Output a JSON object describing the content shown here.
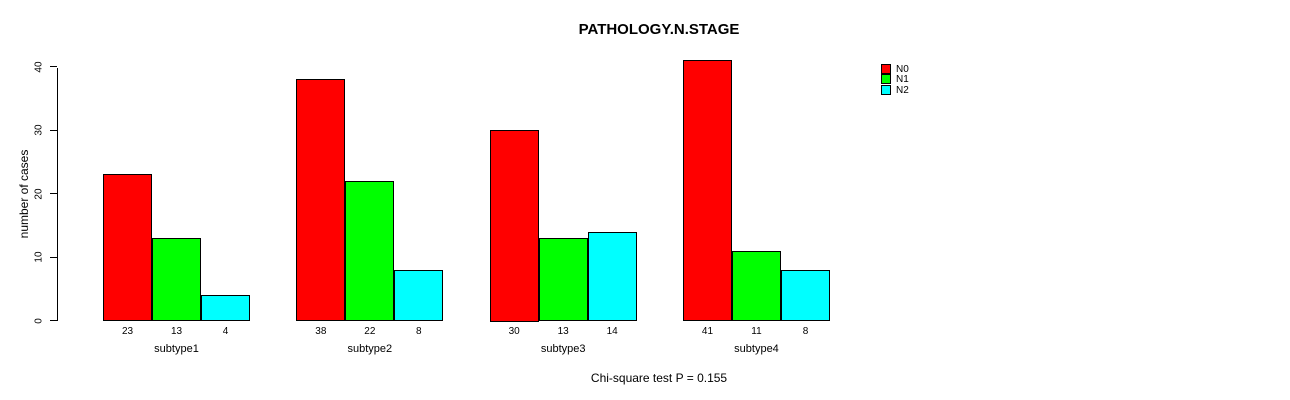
{
  "chart_data": {
    "type": "bar",
    "title": "PATHOLOGY.N.STAGE",
    "ylabel": "number of cases",
    "xlabel": "",
    "categories": [
      "subtype1",
      "subtype2",
      "subtype3",
      "subtype4"
    ],
    "series": [
      {
        "name": "N0",
        "color": "#FF0000",
        "values": [
          23,
          38,
          30,
          41
        ]
      },
      {
        "name": "N1",
        "color": "#00FF00",
        "values": [
          13,
          22,
          13,
          11
        ]
      },
      {
        "name": "N2",
        "color": "#00FFFF",
        "values": [
          4,
          8,
          14,
          8
        ]
      }
    ],
    "bar_value_labels": [
      [
        "23",
        "13",
        "4"
      ],
      [
        "38",
        "22",
        "8"
      ],
      [
        "30",
        "13",
        "14"
      ],
      [
        "41",
        "11",
        "8"
      ]
    ],
    "yticks": [
      "0",
      "10",
      "20",
      "30",
      "40"
    ],
    "ylim": [
      0,
      40
    ],
    "grid": false,
    "legend_position": "top-right-outside",
    "annotation": "Chi-square test P = 0.155"
  }
}
